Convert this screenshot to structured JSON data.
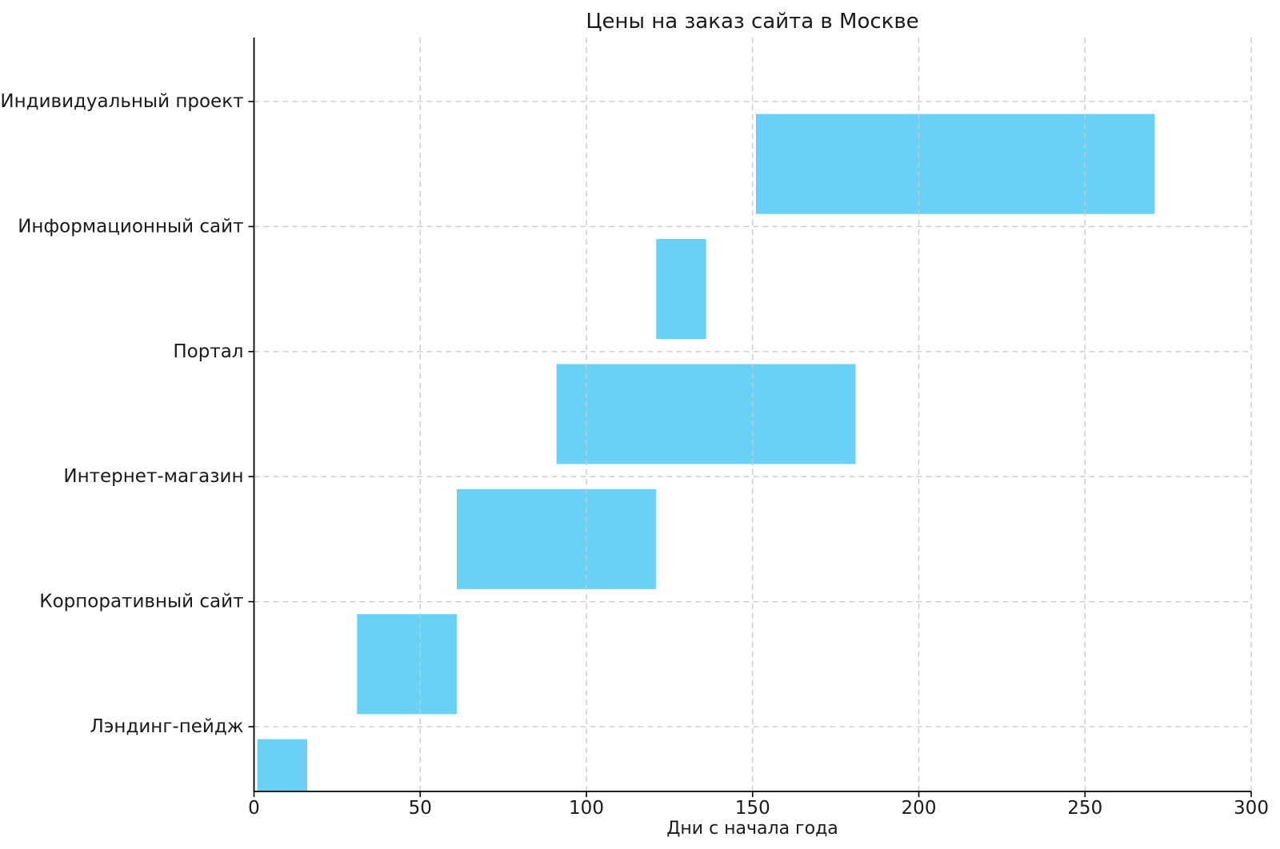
{
  "figure": {
    "background": "#ffffff"
  },
  "chart_data": {
    "type": "bar",
    "orientation": "horizontal-gantt",
    "title": "Цены на заказ сайта в Москве",
    "xlabel": "Дни с начала года",
    "ylabel": "",
    "categories": [
      "Индивидуальный проект",
      "Информационный сайт",
      "Портал",
      "Интернет-магазин",
      "Корпоративный сайт",
      "Лэндинг-пейдж"
    ],
    "bars": [
      {
        "category": "Индивидуальный проект",
        "start": 151,
        "duration": 120,
        "end": 271
      },
      {
        "category": "Информационный сайт",
        "start": 121,
        "duration": 15,
        "end": 136
      },
      {
        "category": "Портал",
        "start": 91,
        "duration": 90,
        "end": 181
      },
      {
        "category": "Интернет-магазин",
        "start": 61,
        "duration": 60,
        "end": 121
      },
      {
        "category": "Корпоративный сайт",
        "start": 31,
        "duration": 30,
        "end": 61
      },
      {
        "category": "Лэндинг-пейдж",
        "start": 1,
        "duration": 15,
        "end": 16
      }
    ],
    "x_ticks": [
      0,
      50,
      100,
      150,
      200,
      250,
      300
    ],
    "xlim": [
      0,
      300
    ],
    "grid": {
      "visible": true,
      "style": "dashed",
      "over_bars": true
    },
    "legend": null,
    "colors": {
      "bar": "#69D1F5",
      "gridline": "#c9c9c9",
      "spine": "#000000",
      "text": "#1a1a1a"
    }
  }
}
